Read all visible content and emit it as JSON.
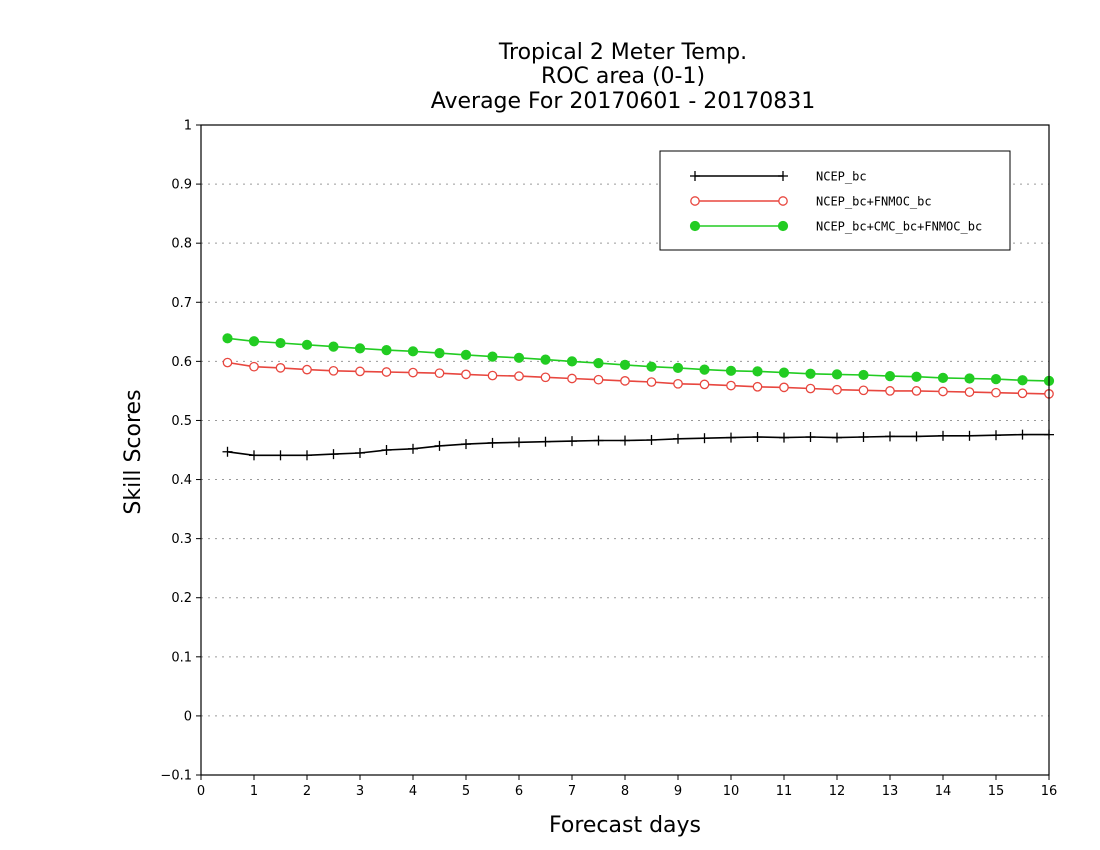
{
  "chart_data": {
    "type": "line",
    "title": [
      "Tropical 2 Meter Temp.",
      "ROC area (0-1)",
      "Average For 20170601 - 20170831"
    ],
    "xlabel": "Forecast days",
    "ylabel": "Skill Scores",
    "xlim": [
      0,
      16
    ],
    "ylim": [
      -0.1,
      1
    ],
    "xticks": [
      0,
      1,
      2,
      3,
      4,
      5,
      6,
      7,
      8,
      9,
      10,
      11,
      12,
      13,
      14,
      15,
      16
    ],
    "yticks": [
      -0.1,
      0,
      0.1,
      0.2,
      0.3,
      0.4,
      0.5,
      0.6,
      0.7,
      0.8,
      0.9,
      1
    ],
    "ytick_labels": [
      "−0.1",
      "0",
      "0.1",
      "0.2",
      "0.3",
      "0.4",
      "0.5",
      "0.6",
      "0.7",
      "0.8",
      "0.9",
      "1"
    ],
    "grid": true,
    "legend_position": "top-right",
    "x": [
      0.5,
      1,
      1.5,
      2,
      2.5,
      3,
      3.5,
      4,
      4.5,
      5,
      5.5,
      6,
      6.5,
      7,
      7.5,
      8,
      8.5,
      9,
      9.5,
      10,
      10.5,
      11,
      11.5,
      12,
      12.5,
      13,
      13.5,
      14,
      14.5,
      15,
      15.5,
      16
    ],
    "series": [
      {
        "name": "NCEP_bc",
        "color": "#000000",
        "marker": "plus",
        "values": [
          0.447,
          0.441,
          0.441,
          0.441,
          0.443,
          0.445,
          0.45,
          0.452,
          0.457,
          0.46,
          0.462,
          0.463,
          0.464,
          0.465,
          0.466,
          0.466,
          0.467,
          0.469,
          0.47,
          0.471,
          0.472,
          0.471,
          0.472,
          0.471,
          0.472,
          0.473,
          0.473,
          0.474,
          0.474,
          0.475,
          0.476,
          0.476
        ]
      },
      {
        "name": "NCEP_bc+FNMOC_bc",
        "color": "#e8473f",
        "marker": "open-circle",
        "values": [
          0.598,
          0.591,
          0.589,
          0.586,
          0.584,
          0.583,
          0.582,
          0.581,
          0.58,
          0.578,
          0.576,
          0.575,
          0.573,
          0.571,
          0.569,
          0.567,
          0.565,
          0.562,
          0.561,
          0.559,
          0.557,
          0.556,
          0.554,
          0.552,
          0.551,
          0.55,
          0.55,
          0.549,
          0.548,
          0.547,
          0.546,
          0.545
        ]
      },
      {
        "name": "NCEP_bc+CMC_bc+FNMOC_bc",
        "color": "#22cc22",
        "marker": "filled-circle",
        "values": [
          0.639,
          0.634,
          0.631,
          0.628,
          0.625,
          0.622,
          0.619,
          0.617,
          0.614,
          0.611,
          0.608,
          0.606,
          0.603,
          0.6,
          0.597,
          0.594,
          0.591,
          0.589,
          0.586,
          0.584,
          0.583,
          0.581,
          0.579,
          0.578,
          0.577,
          0.575,
          0.574,
          0.572,
          0.571,
          0.57,
          0.568,
          0.567
        ]
      }
    ]
  }
}
